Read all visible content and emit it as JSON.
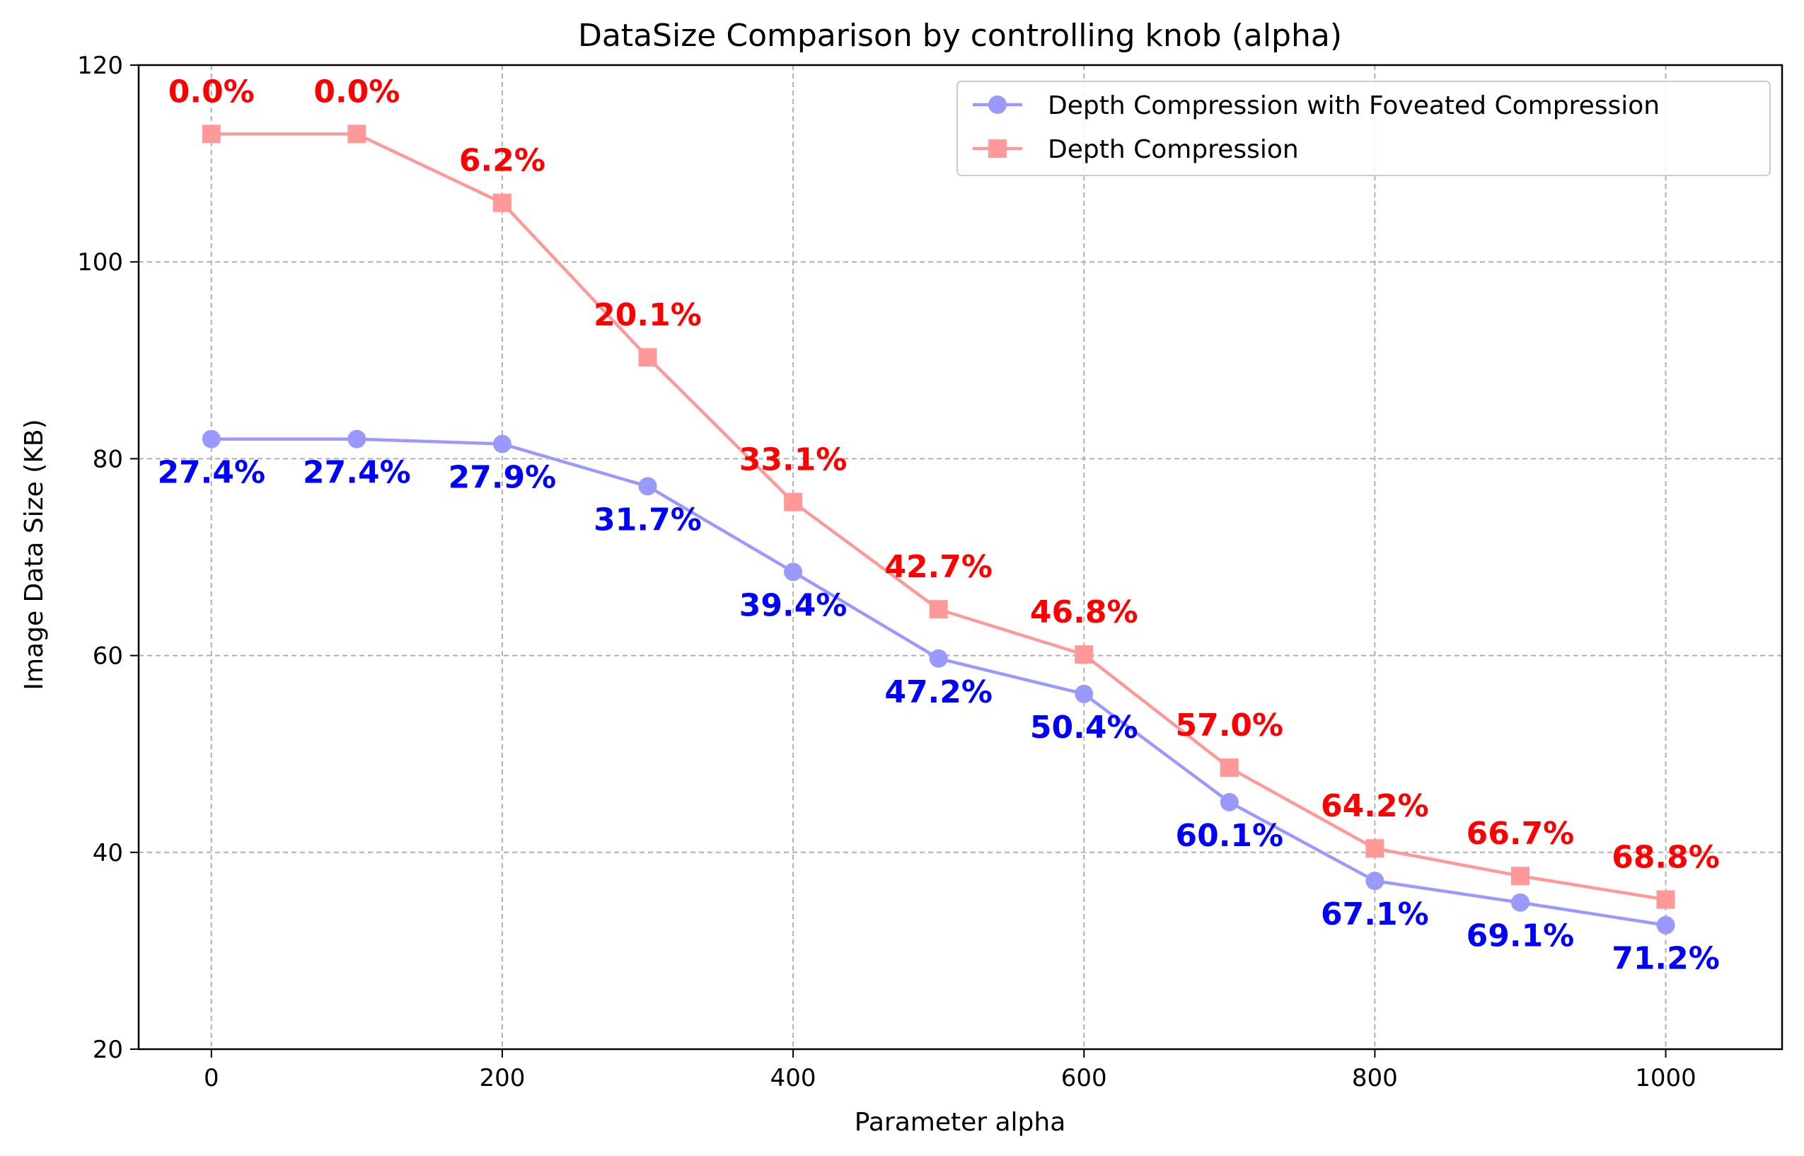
{
  "chart_data": {
    "type": "line",
    "title": "DataSize Comparison by controlling knob (alpha)",
    "xlabel": "Parameter alpha",
    "ylabel": "Image Data Size (KB)",
    "xlim": [
      -50,
      1080
    ],
    "ylim": [
      20,
      120
    ],
    "xticks": [
      "0",
      "200",
      "400",
      "600",
      "800",
      "1000"
    ],
    "yticks": [
      "20",
      "40",
      "60",
      "80",
      "100",
      "120"
    ],
    "grid": true,
    "legend_position": "top-right",
    "x": [
      0,
      100,
      200,
      300,
      400,
      500,
      600,
      700,
      800,
      900,
      1000
    ],
    "series": [
      {
        "name": "Depth Compression with Foveated Compression",
        "marker": "circle",
        "color": "#9999ff",
        "label_color": "#0000ff",
        "values": [
          82.0,
          82.0,
          81.5,
          77.2,
          68.5,
          59.7,
          56.1,
          45.1,
          37.1,
          34.9,
          32.6
        ],
        "labels": [
          "27.4%",
          "27.4%",
          "27.9%",
          "31.7%",
          "39.4%",
          "47.2%",
          "50.4%",
          "60.1%",
          "67.1%",
          "69.1%",
          "71.2%"
        ]
      },
      {
        "name": "Depth Compression",
        "marker": "square",
        "color": "#ff9999",
        "label_color": "#ff0000",
        "values": [
          113.0,
          113.0,
          106.0,
          90.3,
          75.6,
          64.7,
          60.1,
          48.6,
          40.4,
          37.6,
          35.2
        ],
        "labels": [
          "0.0%",
          "0.0%",
          "6.2%",
          "20.1%",
          "33.1%",
          "42.7%",
          "46.8%",
          "57.0%",
          "64.2%",
          "66.7%",
          "68.8%"
        ]
      }
    ]
  }
}
